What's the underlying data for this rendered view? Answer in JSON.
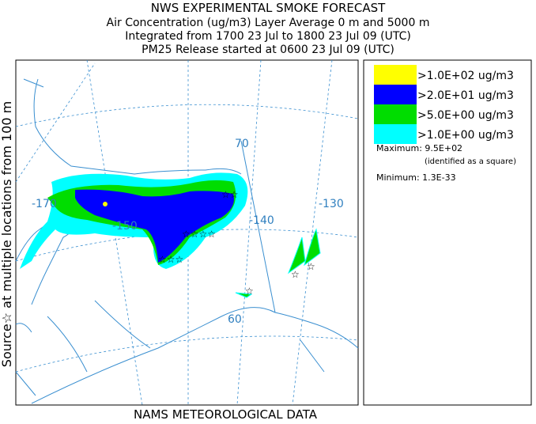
{
  "header": {
    "title": "NWS EXPERIMENTAL SMOKE FORECAST",
    "lines": [
      "Air Concentration (ug/m3) Layer Average    0 m and  5000 m",
      "Integrated from 1700 23 Jul to 1800 23 Jul 09 (UTC)",
      "PM25 Release started at 0600 23 Jul 09 (UTC)"
    ]
  },
  "side_label": "Source☆ at multiple locations from  100 m",
  "footer": "NAMS METEOROLOGICAL DATA",
  "legend": {
    "items": [
      {
        "label": ">1.0E+02 ug/m3",
        "color": "#ffff00"
      },
      {
        "label": ">2.0E+01 ug/m3",
        "color": "#0000ff"
      },
      {
        "label": ">5.0E+00 ug/m3",
        "color": "#00dd00"
      },
      {
        "label": ">1.0E+00 ug/m3",
        "color": "#00ffff"
      }
    ]
  },
  "stats": {
    "maximum": "Maximum: 9.5E+02",
    "maximum_note": "(identified as a square)",
    "minimum": "Minimum: 1.3E-33"
  },
  "map": {
    "labels": [
      "70",
      "-170",
      "-150",
      "-140",
      "-130",
      "60"
    ]
  }
}
